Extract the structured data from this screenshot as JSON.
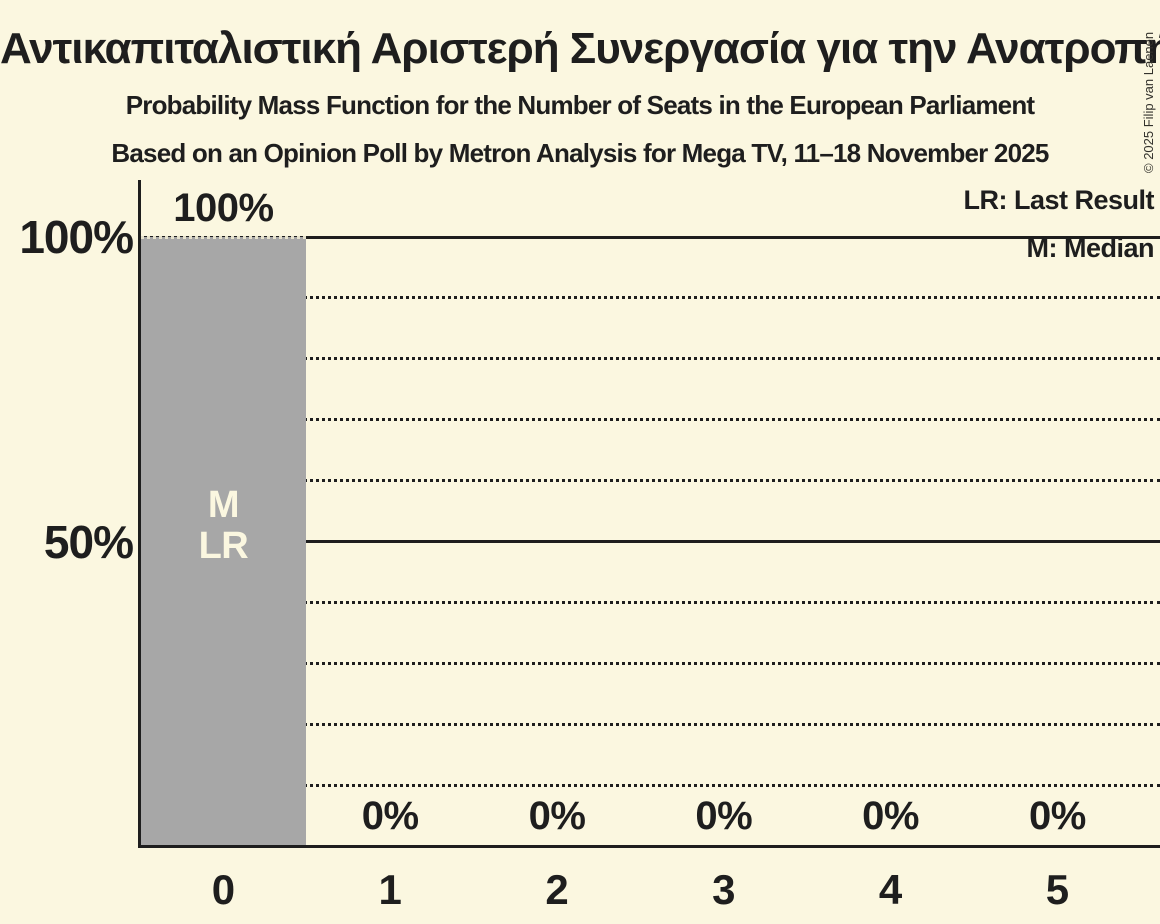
{
  "chart_data": {
    "type": "bar",
    "title": "Αντικαπιταλιστική Αριστερή Συνεργασία για την Ανατροπή",
    "subtitle1": "Probability Mass Function for the Number of Seats in the European Parliament",
    "subtitle2": "Based on an Opinion Poll by Metron Analysis for Mega TV, 11–18 November 2025",
    "categories": [
      "0",
      "1",
      "2",
      "3",
      "4",
      "5"
    ],
    "values": [
      100,
      0,
      0,
      0,
      0,
      0
    ],
    "value_labels": [
      "100%",
      "0%",
      "0%",
      "0%",
      "0%",
      "0%"
    ],
    "bar_annotations": [
      {
        "category_index": 0,
        "lines": [
          "M",
          "LR"
        ]
      }
    ],
    "y_ticks": [
      {
        "label": "100%",
        "value": 100
      },
      {
        "label": "50%",
        "value": 50
      }
    ],
    "y_gridlines_solid": [
      100,
      50
    ],
    "y_gridlines_dotted": [
      90,
      80,
      70,
      60,
      40,
      30,
      20,
      10
    ],
    "ylim": [
      0,
      100
    ],
    "xlabel": "",
    "ylabel": "",
    "legend_entries": [
      "LR: Last Result",
      "M: Median"
    ],
    "legend_position": "top-right",
    "grid": "horizontal-dotted-with-solid-50-100",
    "copyright": "© 2025 Filip van Laenen",
    "colors": {
      "background": "#FBF7E0",
      "bar": "#A7A7A7",
      "text": "#1E1E1E",
      "bar_label_text": "#FBF7E0"
    }
  }
}
